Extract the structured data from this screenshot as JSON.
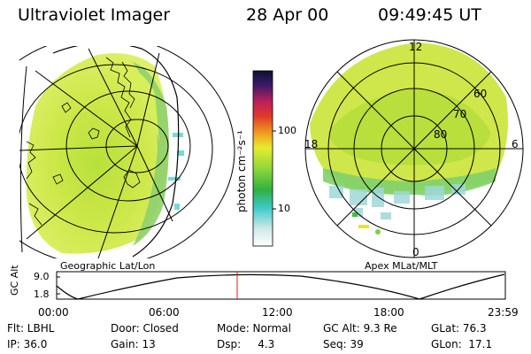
{
  "header": {
    "instrument": "Ultraviolet Imager",
    "date": "28 Apr 00",
    "time": "09:49:45 UT"
  },
  "left_panel": {
    "label": "Geographic Lat/Lon"
  },
  "right_panel": {
    "label": "Apex MLat/MLT",
    "mlt_labels": [
      "12",
      "18",
      "6",
      "0"
    ],
    "lat_labels": [
      "60",
      "70",
      "80"
    ]
  },
  "colorbar": {
    "unit": "photon cm⁻²s⁻¹",
    "ticks": [
      "100",
      "10"
    ]
  },
  "altitude_plot": {
    "axis_label": "GC Alt",
    "y_ticks": [
      "9.0",
      "1.8"
    ],
    "x_ticks": [
      "00:00",
      "06:00",
      "12:00",
      "18:00",
      "23:59"
    ]
  },
  "params": {
    "row1": [
      "Flt: LBHL",
      "Door: Closed",
      "Mode: Normal",
      "GC Alt: 9.3 Re",
      "GLat: 76.3"
    ],
    "row2": [
      "IP: 36.0",
      "Gain: 13",
      "Dsp:     4.3",
      "Seq: 39",
      "GLon:  17.1"
    ]
  },
  "colors": {
    "cursor": "#cc2222",
    "grid": "#000000"
  }
}
